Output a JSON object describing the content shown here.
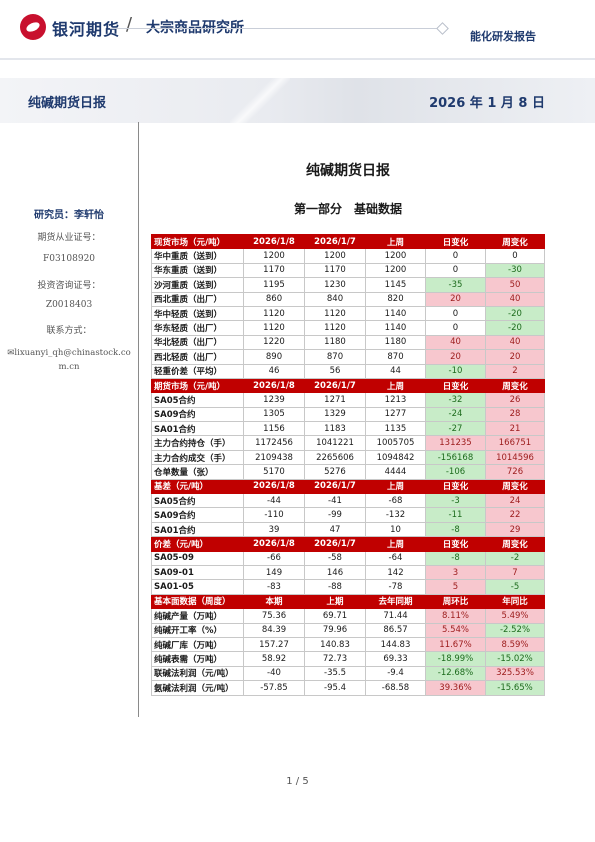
{
  "header": {
    "brand": "银河期货",
    "slash": "/",
    "institute": "大宗商品研究所",
    "report_type": "能化研发报告"
  },
  "banner": {
    "title": "纯碱期货日报",
    "date": "2026 年 1 月 8 日"
  },
  "sidebar": {
    "researcher": "研究员：李轩怡",
    "qualification_label": "期货从业证号：",
    "qualification_no": "F03108920",
    "consulting_label": "投资咨询证号：",
    "consulting_no": "Z0018403",
    "contact_label": "联系方式：",
    "email": "lixuanyi_qh@chinastock.com.cn"
  },
  "document": {
    "title": "纯碱期货日报",
    "subtitle": "第一部分　基础数据"
  },
  "sections": [
    {
      "header": [
        "现货市场（元/吨）",
        "2026/1/8",
        "2026/1/7",
        "上周",
        "日变化",
        "周变化"
      ],
      "rows": [
        {
          "label": "华中重质（送到）",
          "v": [
            "1200",
            "1200",
            "1200"
          ],
          "d": "0",
          "w": "0"
        },
        {
          "label": "华东重质（送到）",
          "v": [
            "1170",
            "1170",
            "1200"
          ],
          "d": "0",
          "w": "-30"
        },
        {
          "label": "沙河重质（送到）",
          "v": [
            "1195",
            "1230",
            "1145"
          ],
          "d": "-35",
          "w": "50"
        },
        {
          "label": "西北重质（出厂）",
          "v": [
            "860",
            "840",
            "820"
          ],
          "d": "20",
          "w": "40"
        },
        {
          "label": "华中轻质（送到）",
          "v": [
            "1120",
            "1120",
            "1140"
          ],
          "d": "0",
          "w": "-20"
        },
        {
          "label": "华东轻质（出厂）",
          "v": [
            "1120",
            "1120",
            "1140"
          ],
          "d": "0",
          "w": "-20"
        },
        {
          "label": "华北轻质（出厂）",
          "v": [
            "1220",
            "1180",
            "1180"
          ],
          "d": "40",
          "w": "40"
        },
        {
          "label": "西北轻质（出厂）",
          "v": [
            "890",
            "870",
            "870"
          ],
          "d": "20",
          "w": "20"
        },
        {
          "label": "轻重价差（平均）",
          "v": [
            "46",
            "56",
            "44"
          ],
          "d": "-10",
          "w": "2"
        }
      ]
    },
    {
      "header": [
        "期货市场（元/吨）",
        "2026/1/8",
        "2026/1/7",
        "上周",
        "日变化",
        "周变化"
      ],
      "rows": [
        {
          "label": "SA05合约",
          "v": [
            "1239",
            "1271",
            "1213"
          ],
          "d": "-32",
          "w": "26"
        },
        {
          "label": "SA09合约",
          "v": [
            "1305",
            "1329",
            "1277"
          ],
          "d": "-24",
          "w": "28"
        },
        {
          "label": "SA01合约",
          "v": [
            "1156",
            "1183",
            "1135"
          ],
          "d": "-27",
          "w": "21"
        },
        {
          "label": "主力合约持仓（手）",
          "v": [
            "1172456",
            "1041221",
            "1005705"
          ],
          "d": "131235",
          "w": "166751"
        },
        {
          "label": "主力合约成交（手）",
          "v": [
            "2109438",
            "2265606",
            "1094842"
          ],
          "d": "-156168",
          "w": "1014596"
        },
        {
          "label": "仓单数量（张）",
          "v": [
            "5170",
            "5276",
            "4444"
          ],
          "d": "-106",
          "w": "726"
        }
      ]
    },
    {
      "header": [
        "基差（元/吨）",
        "2026/1/8",
        "2026/1/7",
        "上周",
        "日变化",
        "周变化"
      ],
      "rows": [
        {
          "label": "SA05合约",
          "v": [
            "-44",
            "-41",
            "-68"
          ],
          "d": "-3",
          "w": "24"
        },
        {
          "label": "SA09合约",
          "v": [
            "-110",
            "-99",
            "-132"
          ],
          "d": "-11",
          "w": "22"
        },
        {
          "label": "SA01合约",
          "v": [
            "39",
            "47",
            "10"
          ],
          "d": "-8",
          "w": "29"
        }
      ]
    },
    {
      "header": [
        "价差（元/吨）",
        "2026/1/8",
        "2026/1/7",
        "上周",
        "日变化",
        "周变化"
      ],
      "rows": [
        {
          "label": "SA05-09",
          "v": [
            "-66",
            "-58",
            "-64"
          ],
          "d": "-8",
          "w": "-2"
        },
        {
          "label": "SA09-01",
          "v": [
            "149",
            "146",
            "142"
          ],
          "d": "3",
          "w": "7"
        },
        {
          "label": "SA01-05",
          "v": [
            "-83",
            "-88",
            "-78"
          ],
          "d": "5",
          "w": "-5"
        }
      ]
    },
    {
      "header": [
        "基本面数据（周度）",
        "本期",
        "上期",
        "去年同期",
        "周环比",
        "年同比"
      ],
      "rows": [
        {
          "label": "纯碱产量（万吨）",
          "v": [
            "75.36",
            "69.71",
            "71.44"
          ],
          "d": "8.11%",
          "w": "5.49%"
        },
        {
          "label": "纯碱开工率（%）",
          "v": [
            "84.39",
            "79.96",
            "86.57"
          ],
          "d": "5.54%",
          "w": "-2.52%"
        },
        {
          "label": "纯碱厂库（万吨）",
          "v": [
            "157.27",
            "140.83",
            "144.83"
          ],
          "d": "11.67%",
          "w": "8.59%"
        },
        {
          "label": "纯碱表需（万吨）",
          "v": [
            "58.92",
            "72.73",
            "69.33"
          ],
          "d": "-18.99%",
          "w": "-15.02%"
        },
        {
          "label": "联碱法利润（元/吨）",
          "v": [
            "-40",
            "-35.5",
            "-9.4"
          ],
          "d": "-12.68%",
          "w": "325.53%"
        },
        {
          "label": "氨碱法利润（元/吨）",
          "v": [
            "-57.85",
            "-95.4",
            "-68.58"
          ],
          "d": "39.36%",
          "w": "-15.65%"
        }
      ]
    }
  ],
  "footer": {
    "page": "1 / 5"
  },
  "colors": {
    "section_header": "#c00000",
    "positive_fill": "#f7c7ce",
    "negative_fill": "#c8ecc8",
    "brand_blue": "#1f3a6e",
    "logo_red": "#c8102e"
  }
}
